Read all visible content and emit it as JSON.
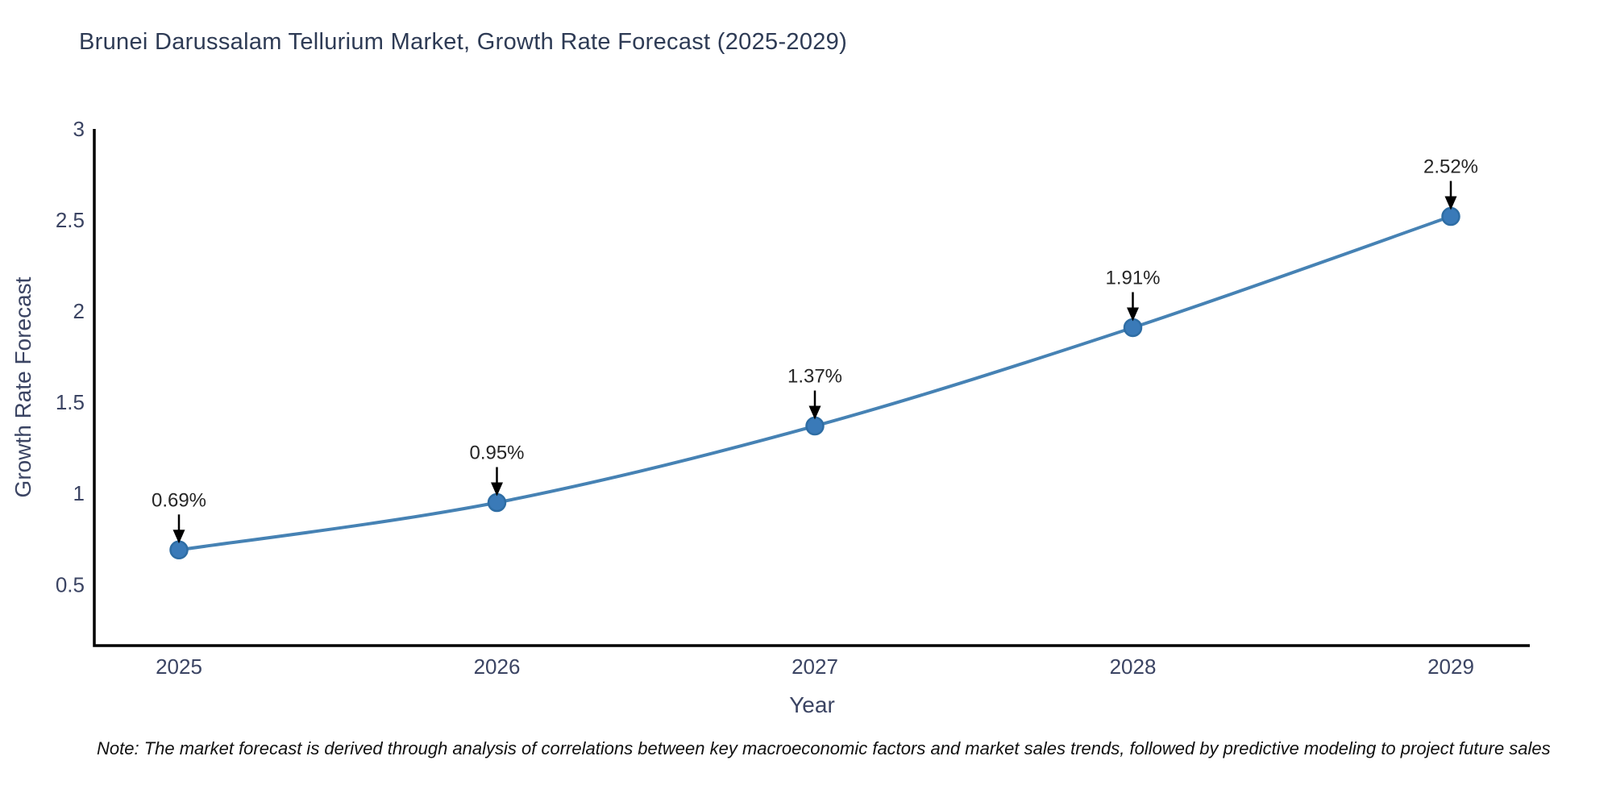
{
  "note": "Note: The market forecast is derived through analysis of correlations between key macroeconomic factors and market sales trends, followed by predictive modeling to project future sales",
  "chart_data": {
    "type": "line",
    "title": "Brunei Darussalam Tellurium Market, Growth Rate Forecast (2025-2029)",
    "categories": [
      "2025",
      "2026",
      "2027",
      "2028",
      "2029"
    ],
    "series": [
      {
        "name": "Growth Rate Forecast",
        "values": [
          0.69,
          0.95,
          1.37,
          1.91,
          2.52
        ]
      }
    ],
    "point_labels": [
      "0.69%",
      "0.95%",
      "1.37%",
      "1.91%",
      "2.52%"
    ],
    "xlabel": "Year",
    "ylabel": "Growth Rate Forecast",
    "yticks": [
      0.5,
      1,
      1.5,
      2,
      2.5,
      3
    ],
    "ylim": [
      0.165,
      3.0
    ],
    "grid": false,
    "legend": false,
    "annotation_arrows": true,
    "colors": {
      "line": "#4682b4",
      "marker_fill": "#3a7ab8",
      "marker_edge": "#2e6da4",
      "axis": "#000000",
      "tick_label": "#3b4463",
      "axis_title": "#3b4463",
      "title": "#2e3b55",
      "annotation": "#262626",
      "arrow": "#000000",
      "note": "#111111",
      "background": "#ffffff"
    }
  }
}
